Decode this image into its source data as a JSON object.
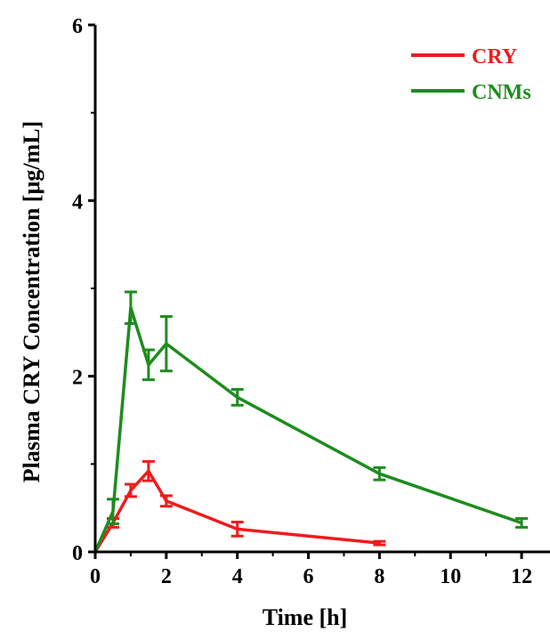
{
  "chart_data": {
    "type": "line",
    "xlabel": "Time [h]",
    "ylabel": "Plasma CRY Concentration [μg/mL]",
    "xlim": [
      0,
      12.8
    ],
    "ylim": [
      0,
      6
    ],
    "xticks": [
      0,
      2,
      4,
      6,
      8,
      10,
      12
    ],
    "yticks": [
      0,
      2,
      4,
      6
    ],
    "legend": "top-right",
    "grid": false,
    "series": [
      {
        "name": "CRY",
        "color": "#ee1c1c",
        "x": [
          0,
          0.5,
          1,
          1.5,
          2,
          4,
          8
        ],
        "y": [
          0,
          0.33,
          0.7,
          0.92,
          0.58,
          0.26,
          0.1
        ],
        "err": [
          0,
          0.05,
          0.07,
          0.11,
          0.06,
          0.08,
          0.02
        ]
      },
      {
        "name": "CNMs",
        "color": "#1e8c1e",
        "x": [
          0,
          0.5,
          1,
          1.5,
          2,
          4,
          8,
          12
        ],
        "y": [
          0,
          0.46,
          2.78,
          2.13,
          2.37,
          1.76,
          0.89,
          0.33
        ],
        "err": [
          0,
          0.14,
          0.18,
          0.17,
          0.31,
          0.09,
          0.07,
          0.05
        ]
      }
    ]
  }
}
